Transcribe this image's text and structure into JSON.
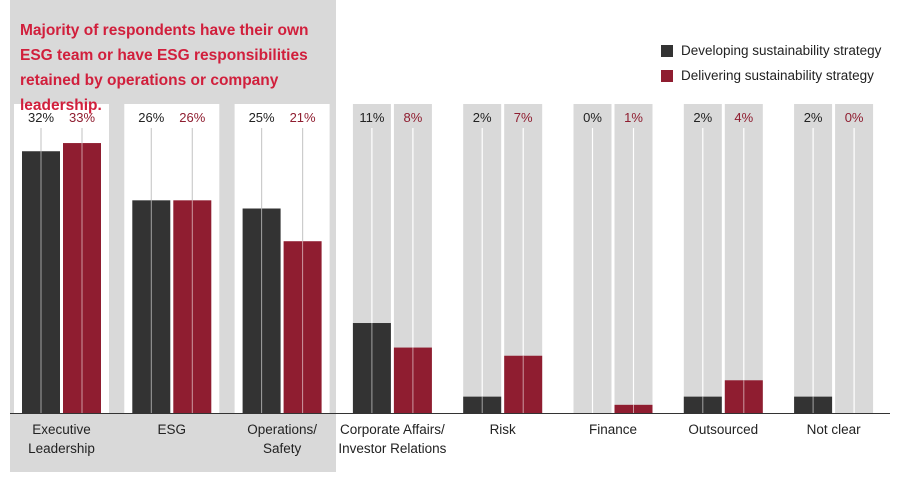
{
  "headline": "Majority of respondents have their own ESG team or have ESG responsibilities retained by operations or company leadership.",
  "colors": {
    "developing": "#333333",
    "delivering": "#8f1d30",
    "headline": "#d11f3c",
    "highlight_panel": "#d9d9d9",
    "track": "#d9d9d9",
    "label_text": "#222222",
    "delivering_label": "#8f1d30"
  },
  "chart_data": {
    "type": "bar",
    "categories": [
      "Executive Leadership",
      "ESG",
      "Operations/ Safety",
      "Corporate Affairs/ Investor Relations",
      "Risk",
      "Finance",
      "Outsourced",
      "Not clear"
    ],
    "category_labels": [
      [
        "Executive",
        "Leadership"
      ],
      [
        "ESG"
      ],
      [
        "Operations/",
        "Safety"
      ],
      [
        "Corporate Affairs/",
        "Investor Relations"
      ],
      [
        "Risk"
      ],
      [
        "Finance"
      ],
      [
        "Outsourced"
      ],
      [
        "Not clear"
      ]
    ],
    "series": [
      {
        "name": "Developing sustainability strategy",
        "key": "developing",
        "values": [
          32,
          26,
          25,
          11,
          2,
          0,
          2,
          2
        ],
        "labels": [
          "32%",
          "26%",
          "25%",
          "11%",
          "2%",
          "0%",
          "2%",
          "2%"
        ]
      },
      {
        "name": "Delivering sustainability strategy",
        "key": "delivering",
        "values": [
          33,
          26,
          21,
          8,
          7,
          1,
          4,
          0
        ],
        "labels": [
          "33%",
          "26%",
          "21%",
          "8%",
          "7%",
          "1%",
          "4%",
          "0%"
        ]
      }
    ],
    "highlighted_categories": 3,
    "ylim": [
      0,
      35
    ],
    "legend_position": "top-right",
    "grid": false
  },
  "legend": {
    "items": [
      {
        "label": "Developing sustainability strategy",
        "key": "developing"
      },
      {
        "label": "Delivering sustainability strategy",
        "key": "delivering"
      }
    ]
  }
}
